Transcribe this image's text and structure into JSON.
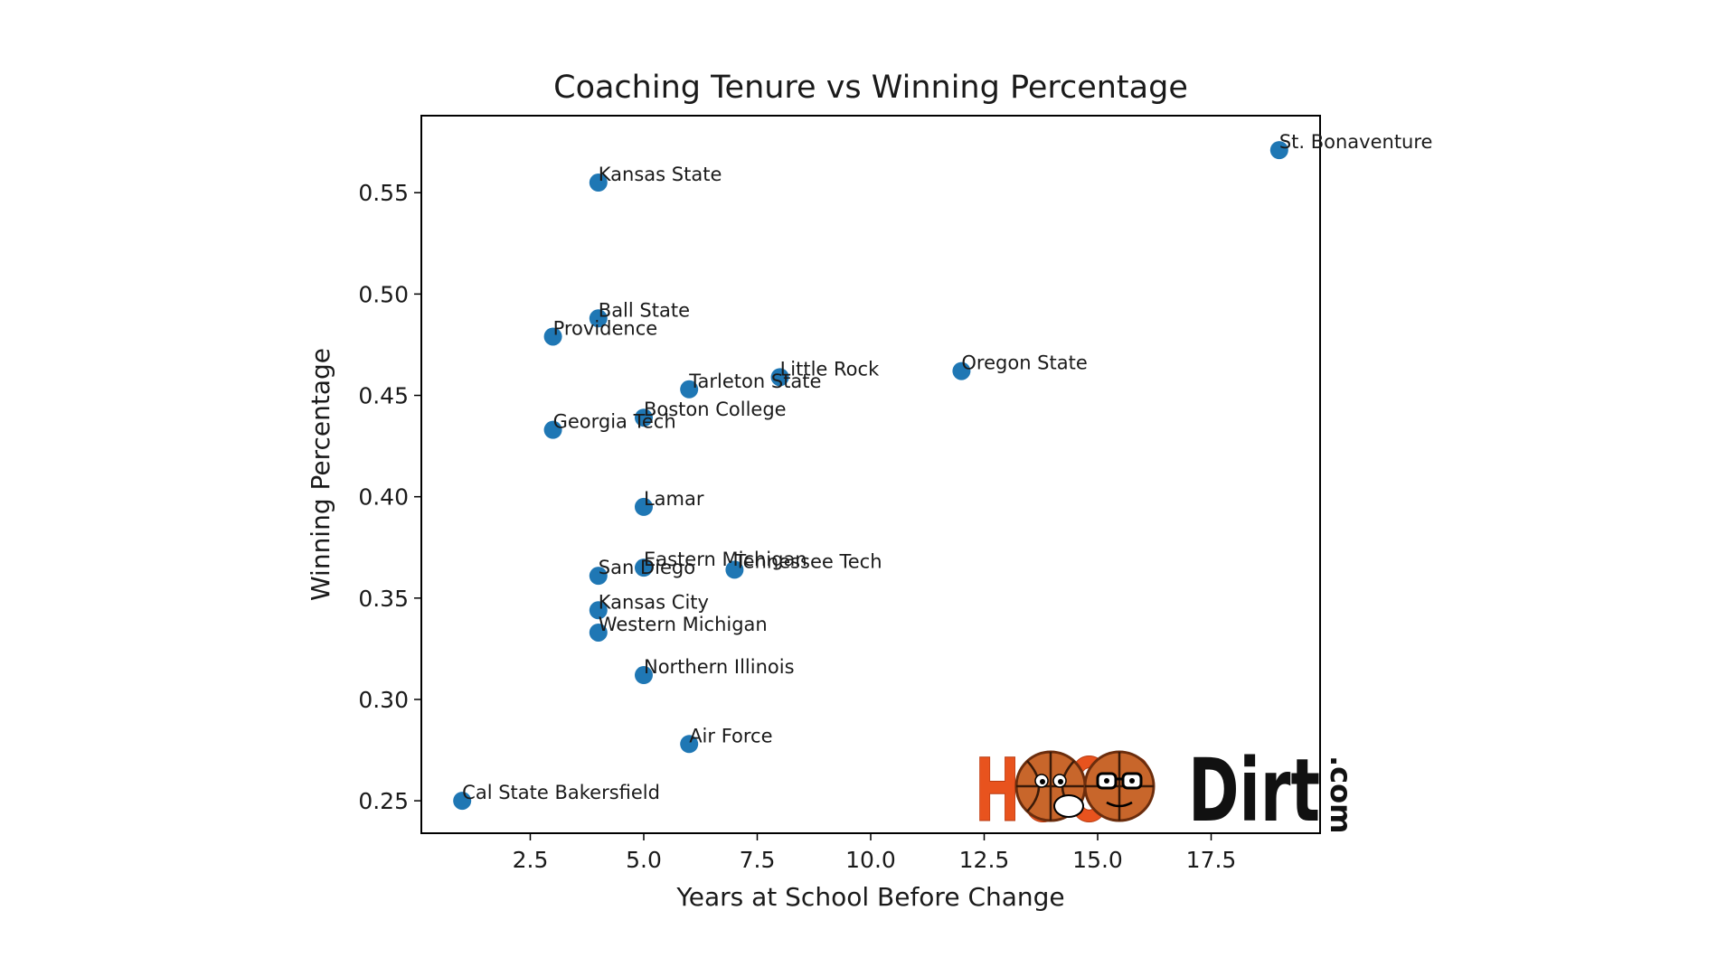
{
  "chart_data": {
    "type": "scatter",
    "title": "Coaching Tenure vs Winning Percentage",
    "xlabel": "Years at School Before Change",
    "ylabel": "Winning Percentage",
    "xlim": [
      0.1,
      19.9
    ],
    "ylim": [
      0.234,
      0.588
    ],
    "xticks": [
      2.5,
      5.0,
      7.5,
      10.0,
      12.5,
      15.0,
      17.5
    ],
    "xtick_labels": [
      "2.5",
      "5.0",
      "7.5",
      "10.0",
      "12.5",
      "15.0",
      "17.5"
    ],
    "yticks": [
      0.25,
      0.3,
      0.35,
      0.4,
      0.45,
      0.5,
      0.55
    ],
    "ytick_labels": [
      "0.25",
      "0.30",
      "0.35",
      "0.40",
      "0.45",
      "0.50",
      "0.55"
    ],
    "grid": false,
    "marker_color": "#1f77b4",
    "points": [
      {
        "label": "St. Bonaventure",
        "x": 19,
        "y": 0.571
      },
      {
        "label": "Kansas State",
        "x": 4,
        "y": 0.555
      },
      {
        "label": "Ball State",
        "x": 4,
        "y": 0.488
      },
      {
        "label": "Providence",
        "x": 3,
        "y": 0.479
      },
      {
        "label": "Little Rock",
        "x": 8,
        "y": 0.459
      },
      {
        "label": "Oregon State",
        "x": 12,
        "y": 0.462
      },
      {
        "label": "Tarleton State",
        "x": 6,
        "y": 0.453
      },
      {
        "label": "Boston College",
        "x": 5,
        "y": 0.439
      },
      {
        "label": "Georgia Tech",
        "x": 3,
        "y": 0.433
      },
      {
        "label": "Lamar",
        "x": 5,
        "y": 0.395
      },
      {
        "label": "Eastern Michigan",
        "x": 5,
        "y": 0.365
      },
      {
        "label": "Tennessee Tech",
        "x": 7,
        "y": 0.364
      },
      {
        "label": "San Diego",
        "x": 4,
        "y": 0.361
      },
      {
        "label": "Kansas City",
        "x": 4,
        "y": 0.344
      },
      {
        "label": "Western Michigan",
        "x": 4,
        "y": 0.333
      },
      {
        "label": "Northern Illinois",
        "x": 5,
        "y": 0.312
      },
      {
        "label": "Air Force",
        "x": 6,
        "y": 0.278
      },
      {
        "label": "Cal State Bakersfield",
        "x": 1,
        "y": 0.25
      }
    ]
  },
  "logo": {
    "text_hoop": "HOOP",
    "text_dirt": "Dirt",
    "text_com": ".com"
  }
}
